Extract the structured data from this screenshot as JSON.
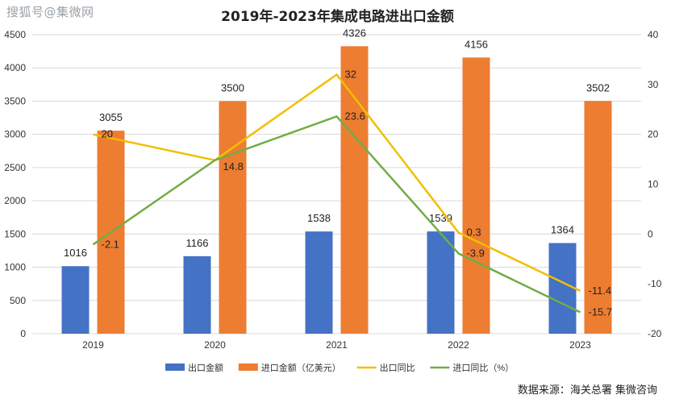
{
  "watermark": "搜狐号@集微网",
  "source": "数据来源：海关总署  集微咨询",
  "colors": {
    "export_bar": "#4472c4",
    "import_bar": "#ed7d31",
    "export_line": "#f1bf00",
    "import_line": "#70ad47",
    "grid": "#d9d9d9"
  },
  "chart_data": {
    "type": "bar",
    "title": "2019年-2023年集成电路进出口金额",
    "categories": [
      "2019",
      "2020",
      "2021",
      "2022",
      "2023"
    ],
    "ylim": [
      0,
      4500
    ],
    "yticks": [
      0,
      500,
      1000,
      1500,
      2000,
      2500,
      3000,
      3500,
      4000,
      4500
    ],
    "y2lim": [
      -20,
      40
    ],
    "y2ticks": [
      -20,
      -10,
      0,
      10,
      20,
      30,
      40
    ],
    "grid": true,
    "legend_position": "bottom",
    "series": [
      {
        "name": "出口金额",
        "kind": "bar",
        "axis": "left",
        "values": [
          1016,
          1166,
          1538,
          1539,
          1364
        ]
      },
      {
        "name": "进口金额（亿美元）",
        "kind": "bar",
        "axis": "left",
        "values": [
          3055,
          3500,
          4326,
          4156,
          3502
        ]
      },
      {
        "name": "出口同比",
        "kind": "line",
        "axis": "right",
        "values": [
          20,
          14.8,
          32,
          0.3,
          -11.4
        ]
      },
      {
        "name": "进口同比（%）",
        "kind": "line",
        "axis": "right",
        "values": [
          -2.1,
          14.8,
          23.6,
          -3.9,
          -15.7
        ]
      }
    ],
    "line_labels": {
      "export": [
        "20",
        "",
        "32",
        "0.3",
        "-11.4"
      ],
      "import": [
        "-2.1",
        "14.8",
        "23.6",
        "-3.9",
        "-15.7"
      ]
    }
  }
}
